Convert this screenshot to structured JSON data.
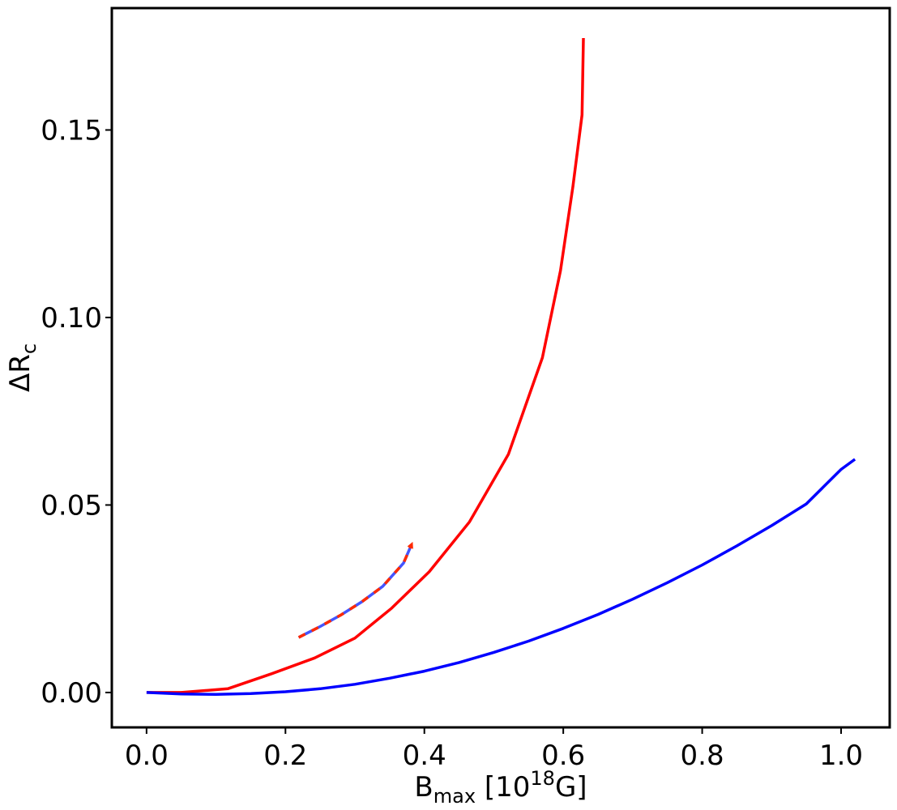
{
  "chart_data": {
    "type": "line",
    "title": "",
    "xlabel": {
      "main": "B",
      "sub": "max",
      "prefix": " [10",
      "sup": "18",
      "suffix": "G]"
    },
    "ylabel": {
      "main": "ΔR",
      "sub": "c"
    },
    "xlim": [
      -0.05,
      1.07
    ],
    "ylim": [
      -0.0093,
      0.1825
    ],
    "x_ticks": [
      {
        "value": 0.0,
        "label": "0.0"
      },
      {
        "value": 0.2,
        "label": "0.2"
      },
      {
        "value": 0.4,
        "label": "0.4"
      },
      {
        "value": 0.6,
        "label": "0.6"
      },
      {
        "value": 0.8,
        "label": "0.8"
      },
      {
        "value": 1.0,
        "label": "1.0"
      }
    ],
    "y_ticks": [
      {
        "value": 0.0,
        "label": "0.00"
      },
      {
        "value": 0.05,
        "label": "0.05"
      },
      {
        "value": 0.1,
        "label": "0.10"
      },
      {
        "value": 0.15,
        "label": "0.15"
      }
    ],
    "grid": false,
    "legend": "none",
    "series": [
      {
        "color": "#ff0000",
        "style": "solid",
        "x": [
          0.0,
          0.05,
          0.117,
          0.18,
          0.242,
          0.3,
          0.353,
          0.407,
          0.465,
          0.521,
          0.57,
          0.596,
          0.614,
          0.627,
          0.629
        ],
        "y": [
          0.0,
          0.0,
          0.001,
          0.005,
          0.0092,
          0.0145,
          0.0225,
          0.0322,
          0.0455,
          0.0635,
          0.0893,
          0.1125,
          0.135,
          0.154,
          0.1745
        ]
      },
      {
        "color": "#0000ff",
        "style": "solid",
        "x": [
          0.0,
          0.05,
          0.1,
          0.15,
          0.2,
          0.25,
          0.3,
          0.35,
          0.4,
          0.45,
          0.5,
          0.55,
          0.6,
          0.65,
          0.7,
          0.75,
          0.8,
          0.85,
          0.9,
          0.95,
          1.0,
          1.02
        ],
        "y": [
          0.0,
          -0.0004,
          -0.0005,
          -0.0003,
          0.0002,
          0.001,
          0.0022,
          0.0038,
          0.0057,
          0.008,
          0.0107,
          0.0137,
          0.0171,
          0.0208,
          0.0249,
          0.0293,
          0.034,
          0.0391,
          0.0445,
          0.0503,
          0.0595,
          0.0622
        ]
      },
      {
        "colors": [
          "#ff2a00",
          "#4455ff"
        ],
        "style": "dashed-arrow",
        "x": [
          0.219,
          0.25,
          0.28,
          0.31,
          0.34,
          0.37,
          0.38
        ],
        "y": [
          0.0147,
          0.0176,
          0.0207,
          0.0242,
          0.0283,
          0.0345,
          0.0388
        ]
      }
    ]
  }
}
